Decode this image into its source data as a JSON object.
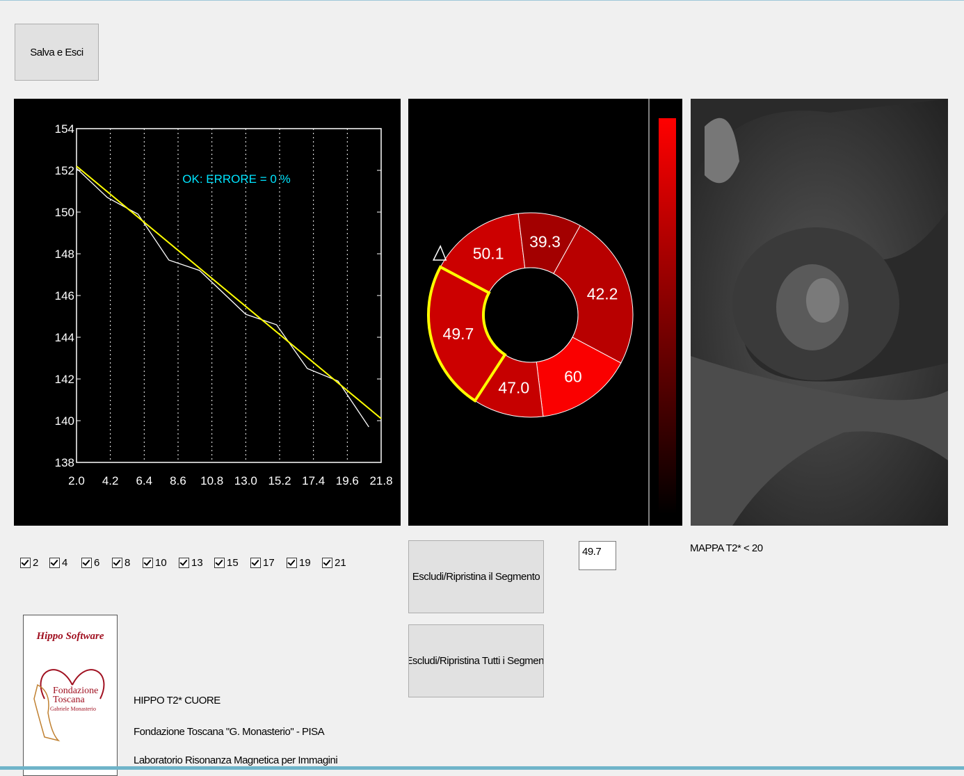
{
  "buttons": {
    "save": "Salva e Esci",
    "exclude_segment": "Escludi/Ripristina il Segmento",
    "exclude_all": "Escludi/Ripristina Tutti i Segment"
  },
  "chart_data": [
    {
      "type": "line",
      "annotation": "OK: ERRORE = 0 %",
      "xlim": [
        2,
        21.8
      ],
      "ylim": [
        138,
        154
      ],
      "xticks": [
        {
          "value": 2,
          "label": "2.0"
        },
        4.2,
        6.4,
        8.6,
        10.8,
        {
          "value": 13,
          "label": "13.0"
        },
        15.2,
        17.4,
        19.6,
        21.8
      ],
      "yticks": [
        138,
        140,
        142,
        144,
        146,
        148,
        150,
        152,
        154
      ],
      "grid": true,
      "series": [
        {
          "color": "#ffffff",
          "x": [
            2,
            4,
            6,
            8,
            10,
            13,
            15,
            17,
            19,
            21
          ],
          "values": [
            152.1,
            150.7,
            149.9,
            147.7,
            147.2,
            145.1,
            144.6,
            142.5,
            141.9,
            139.7
          ]
        },
        {
          "color": "#ffff00",
          "x": [
            2,
            21.8
          ],
          "values": [
            152.2,
            140.1
          ]
        }
      ]
    },
    {
      "type": "donut",
      "values": [
        50.1,
        39.3,
        42.2,
        60,
        47,
        49.7
      ],
      "value_labels": [
        "50.1",
        "39.3",
        "42.2",
        "60",
        "47.0",
        "49.7"
      ],
      "colors": [
        "#cc0000",
        "#a30000",
        "#b80000",
        "#fa0000",
        "#c60000",
        "#cc0000"
      ]
    }
  ],
  "segment_value": 49.7,
  "map_label": "MAPPA T2* < 20",
  "checkboxes": [
    "2",
    "4",
    "6",
    "8",
    "10",
    "13",
    "15",
    "17",
    "19",
    "21"
  ],
  "logo": {
    "title": "Hippo Software",
    "name": [
      "Fondazione",
      "Toscana"
    ],
    "subtitle": "Gabriele Monasterio"
  },
  "footer": [
    "HIPPO T2* CUORE",
    "Fondazione Toscana \"G. Monasterio\" - PISA",
    "Laboratorio Risonanza Magnetica per Immagini"
  ]
}
